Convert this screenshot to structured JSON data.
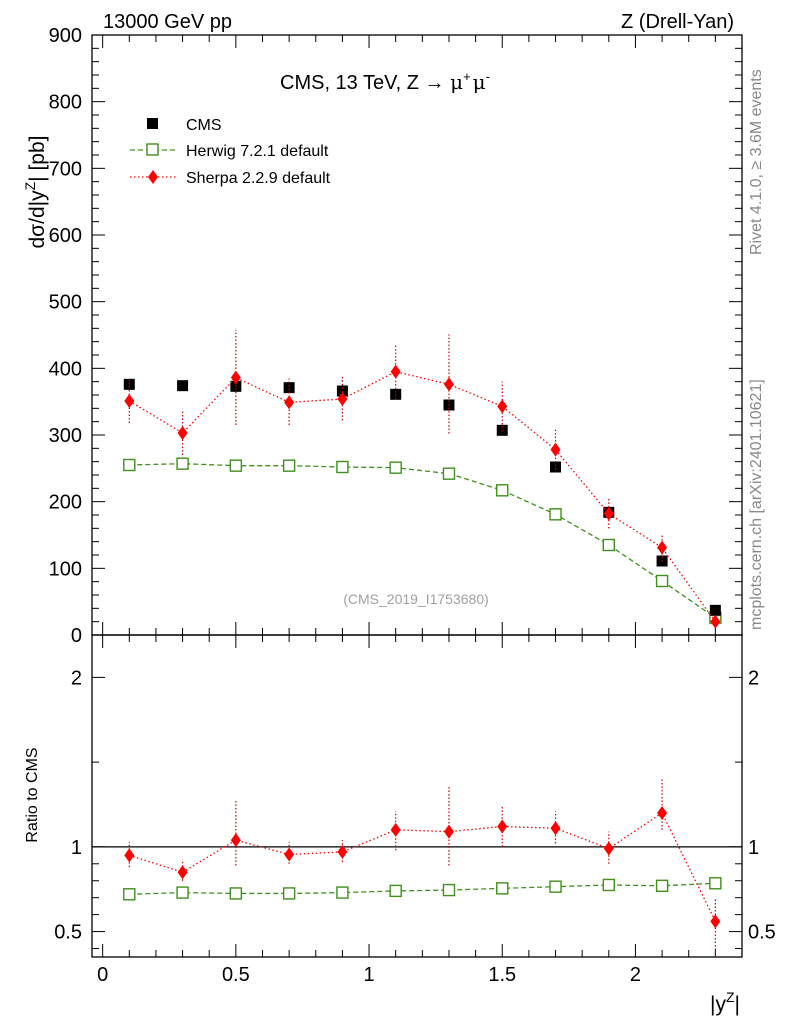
{
  "header": {
    "left": "13000 GeV pp",
    "right": "Z (Drell-Yan)"
  },
  "side_labels": {
    "rivet": "Rivet 4.1.0, ≥ 3.6M events",
    "mcplots": "mcplots.cern.ch [arXiv:2401.10621]"
  },
  "analysis_id": "(CMS_2019_I1753680)",
  "colors": {
    "data": "#000000",
    "herwig": "#3f8f1a",
    "sherpa": "#ff0000",
    "sherpa_err": "#cc0000"
  },
  "chart_data": [
    {
      "type": "scatter",
      "title_parts": {
        "main": "CMS, 13 TeV, Z → ",
        "mu1": "μ",
        "sup1": "+",
        "mu2": "μ",
        "sup2": "-"
      },
      "ylabel": "dσ/d|y^Z| [pb]",
      "ylabel_parts": {
        "pre": "dσ/d|y",
        "sup": "Z",
        "post": "| [pb]"
      },
      "ylim": [
        0,
        900
      ],
      "yticks": [
        0,
        100,
        200,
        300,
        400,
        500,
        600,
        700,
        800,
        900
      ],
      "ytick_labels": [
        "0",
        "100",
        "200",
        "300",
        "400",
        "500",
        "600",
        "700",
        "800",
        "900"
      ],
      "xlim": [
        -0.04,
        2.4
      ],
      "x": [
        0.1,
        0.3,
        0.5,
        0.7,
        0.9,
        1.1,
        1.3,
        1.5,
        1.7,
        1.9,
        2.1,
        2.3
      ],
      "legend": [
        "CMS",
        "Herwig 7.2.1 default",
        "Sherpa 2.2.9 default"
      ],
      "series": [
        {
          "name": "CMS",
          "marker": "square",
          "values": [
            376,
            374,
            373,
            371,
            366,
            361,
            345,
            307,
            252,
            184,
            111,
            37
          ]
        },
        {
          "name": "Herwig 7.2.1 default",
          "marker": "open-square",
          "line": "dashed",
          "values": [
            255,
            257,
            254,
            254,
            252,
            251,
            242,
            217,
            181,
            135,
            81,
            26
          ]
        },
        {
          "name": "Sherpa 2.2.9 default",
          "marker": "diamond",
          "line": "dotted",
          "values": [
            351,
            303,
            386,
            349,
            354,
            395,
            376,
            343,
            278,
            182,
            131,
            20
          ],
          "err_lo": [
            318,
            270,
            315,
            315,
            322,
            353,
            302,
            305,
            248,
            160,
            110,
            10
          ],
          "err_hi": [
            383,
            335,
            458,
            385,
            388,
            436,
            451,
            380,
            310,
            205,
            152,
            30
          ]
        }
      ]
    },
    {
      "type": "scatter",
      "ylabel": "Ratio to CMS",
      "ylim": [
        0.35,
        2.25
      ],
      "yticks": [
        0.5,
        1,
        2
      ],
      "ytick_labels": [
        "0.5",
        "1",
        "2"
      ],
      "xlabel": "|y^Z|",
      "xlabel_parts": {
        "pre": "|y",
        "sup": "Z",
        "post": "|"
      },
      "xticks": [
        0,
        0.5,
        1,
        1.5,
        2
      ],
      "xtick_labels": [
        "0",
        "0.5",
        "1",
        "1.5",
        "2"
      ],
      "xlim": [
        -0.04,
        2.4
      ],
      "x": [
        0.1,
        0.3,
        0.5,
        0.7,
        0.9,
        1.1,
        1.3,
        1.5,
        1.7,
        1.9,
        2.1,
        2.3
      ],
      "reference_line": 1,
      "series": [
        {
          "name": "Herwig 7.2.1 default",
          "marker": "open-square",
          "line": "dashed",
          "values": [
            0.72,
            0.73,
            0.725,
            0.725,
            0.73,
            0.74,
            0.745,
            0.755,
            0.765,
            0.775,
            0.77,
            0.785
          ]
        },
        {
          "name": "Sherpa 2.2.9 default",
          "marker": "diamond",
          "line": "dotted",
          "values": [
            0.95,
            0.85,
            1.04,
            0.955,
            0.97,
            1.1,
            1.09,
            1.12,
            1.11,
            0.99,
            1.2,
            0.56
          ],
          "err_lo": [
            0.88,
            0.8,
            0.89,
            0.9,
            0.91,
            0.98,
            0.89,
            1.0,
            1.02,
            0.9,
            1.1,
            0.35
          ],
          "err_hi": [
            1.03,
            0.92,
            1.28,
            1.03,
            1.04,
            1.21,
            1.36,
            1.24,
            1.21,
            1.09,
            1.4,
            0.7
          ]
        }
      ]
    }
  ]
}
